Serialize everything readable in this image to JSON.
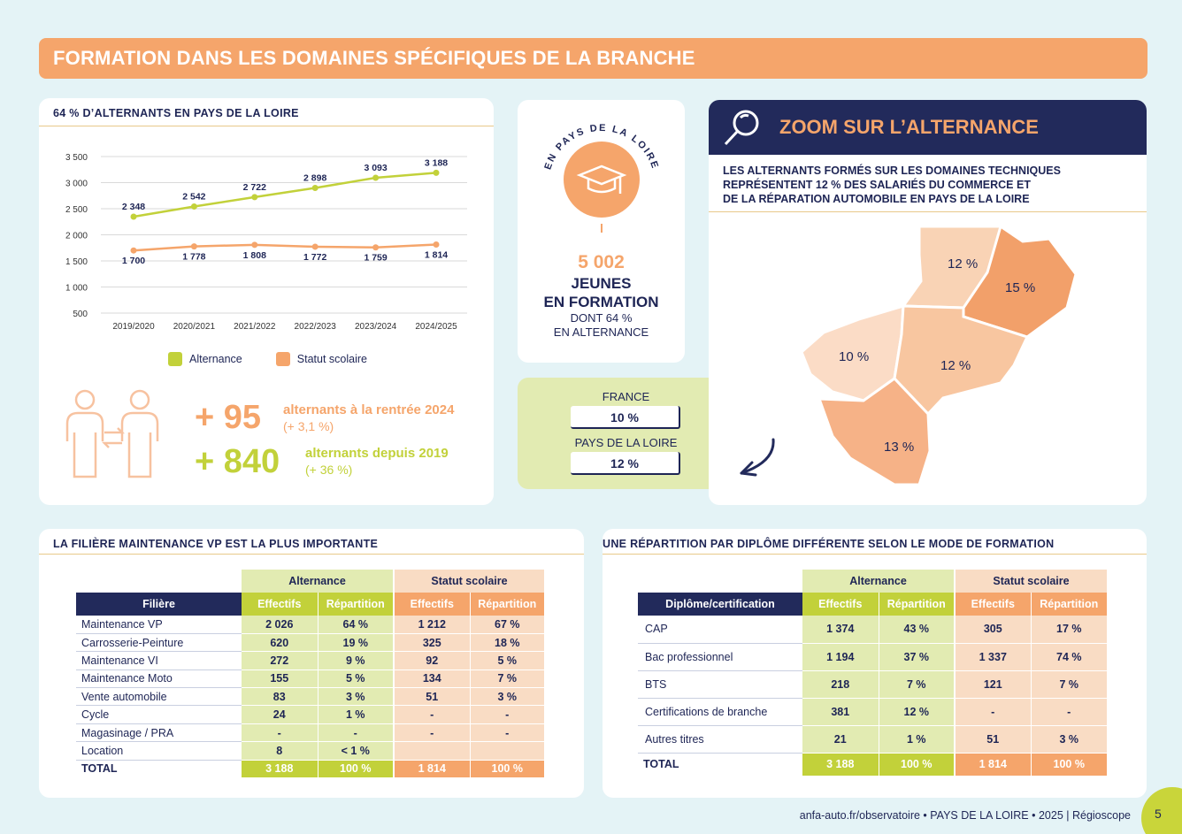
{
  "banner": {
    "title": "FORMATION DANS LES DOMAINES SPÉCIFIQUES DE LA BRANCHE"
  },
  "chart_card": {
    "title": "64 % D’ALTERNANTS EN PAYS DE LA LOIRE",
    "legend_alt": "Alternance",
    "legend_sco": "Statut scolaire"
  },
  "chart_data": {
    "type": "line",
    "x": [
      "2019/2020",
      "2020/2021",
      "2021/2022",
      "2022/2023",
      "2023/2024",
      "2024/2025"
    ],
    "ylim": [
      500,
      3500
    ],
    "yticks": [
      "3 500",
      "3 000",
      "2 500",
      "2 000",
      "1 500",
      "1 000",
      "500"
    ],
    "ytick_values": [
      3500,
      3000,
      2500,
      2000,
      1500,
      1000,
      500
    ],
    "grid": true,
    "legend_placement": "bottom",
    "series": [
      {
        "name": "Alternance",
        "color": "#c2d13a",
        "values": [
          2348,
          2542,
          2722,
          2898,
          3093,
          3188
        ],
        "labels": [
          "2 348",
          "2 542",
          "2 722",
          "2 898",
          "3 093",
          "3 188"
        ]
      },
      {
        "name": "Statut scolaire",
        "color": "#f5a56b",
        "values": [
          1700,
          1778,
          1808,
          1772,
          1759,
          1814
        ],
        "labels": [
          "1 700",
          "1 778",
          "1 808",
          "1 772",
          "1 759",
          "1 814"
        ]
      }
    ]
  },
  "stats": {
    "plus95": "+ 95",
    "plus95_text": "alternants à la rentrée 2024",
    "plus95_sub": "(+ 3,1 %)",
    "plus840": "+ 840",
    "plus840_text": "alternants depuis 2019",
    "plus840_sub": "(+ 36 %)"
  },
  "region_card": {
    "arc_text": "EN PAYS DE LA LOIRE",
    "number": "5 002",
    "line1": "JEUNES",
    "line2": "EN FORMATION",
    "line3": "DONT 64 %",
    "line4": "EN ALTERNANCE"
  },
  "compare": {
    "france_label": "FRANCE",
    "france_value": "10 %",
    "pdl_label": "PAYS DE LA LOIRE",
    "pdl_value": "12 %"
  },
  "zoom": {
    "title": "ZOOM SUR L’ALTERNANCE",
    "desc1": "LES ALTERNANTS FORMÉS SUR LES DOMAINES TECHNIQUES",
    "desc2": "REPRÉSENTENT 12 % DES SALARIÉS DU COMMERCE ET",
    "desc3": "DE LA RÉPARATION AUTOMOBILE EN PAYS DE LA LOIRE",
    "map_labels": [
      "12 %",
      "15 %",
      "10 %",
      "12 %",
      "13 %"
    ],
    "map_colors": [
      "#f9d3b5",
      "#f2a06a",
      "#fbdcc6",
      "#f8c6a0",
      "#f6b287"
    ]
  },
  "filiere": {
    "title": "LA FILIÈRE MAINTENANCE VP EST LA PLUS IMPORTANTE",
    "group_alt": "Alternance",
    "group_sco": "Statut scolaire",
    "col_label": "Filière",
    "col_eff": "Effectifs",
    "col_rep": "Répartition",
    "rows": [
      {
        "label": "Maintenance VP",
        "a_eff": "2 026",
        "a_rep": "64 %",
        "s_eff": "1 212",
        "s_rep": "67 %"
      },
      {
        "label": "Carrosserie-Peinture",
        "a_eff": "620",
        "a_rep": "19 %",
        "s_eff": "325",
        "s_rep": "18 %"
      },
      {
        "label": "Maintenance VI",
        "a_eff": "272",
        "a_rep": "9 %",
        "s_eff": "92",
        "s_rep": "5 %"
      },
      {
        "label": "Maintenance Moto",
        "a_eff": "155",
        "a_rep": "5 %",
        "s_eff": "134",
        "s_rep": "7 %"
      },
      {
        "label": "Vente automobile",
        "a_eff": "83",
        "a_rep": "3 %",
        "s_eff": "51",
        "s_rep": "3 %"
      },
      {
        "label": "Cycle",
        "a_eff": "24",
        "a_rep": "1 %",
        "s_eff": "-",
        "s_rep": "-"
      },
      {
        "label": "Magasinage / PRA",
        "a_eff": "-",
        "a_rep": "-",
        "s_eff": "-",
        "s_rep": "-"
      },
      {
        "label": "Location",
        "a_eff": "8",
        "a_rep": "< 1 %",
        "s_eff": "",
        "s_rep": ""
      }
    ],
    "total": {
      "label": "TOTAL",
      "a_eff": "3 188",
      "a_rep": "100 %",
      "s_eff": "1 814",
      "s_rep": "100 %"
    }
  },
  "diplome": {
    "title": "UNE RÉPARTITION PAR DIPLÔME DIFFÉRENTE SELON LE MODE DE FORMATION",
    "group_alt": "Alternance",
    "group_sco": "Statut scolaire",
    "col_label": "Diplôme/certification",
    "col_eff": "Effectifs",
    "col_rep": "Répartition",
    "rows": [
      {
        "label": "CAP",
        "a_eff": "1 374",
        "a_rep": "43 %",
        "s_eff": "305",
        "s_rep": "17 %"
      },
      {
        "label": "Bac professionnel",
        "a_eff": "1 194",
        "a_rep": "37 %",
        "s_eff": "1 337",
        "s_rep": "74 %"
      },
      {
        "label": "BTS",
        "a_eff": "218",
        "a_rep": "7 %",
        "s_eff": "121",
        "s_rep": "7 %"
      },
      {
        "label": "Certifications de branche",
        "a_eff": "381",
        "a_rep": "12 %",
        "s_eff": "-",
        "s_rep": "-"
      },
      {
        "label": "Autres titres",
        "a_eff": "21",
        "a_rep": "1 %",
        "s_eff": "51",
        "s_rep": "3 %"
      }
    ],
    "total": {
      "label": "TOTAL",
      "a_eff": "3 188",
      "a_rep": "100 %",
      "s_eff": "1 814",
      "s_rep": "100 %"
    }
  },
  "footer": {
    "text": "anfa-auto.fr/observatoire • PAYS DE LA LOIRE • 2025 | Régioscope",
    "page": "5"
  }
}
